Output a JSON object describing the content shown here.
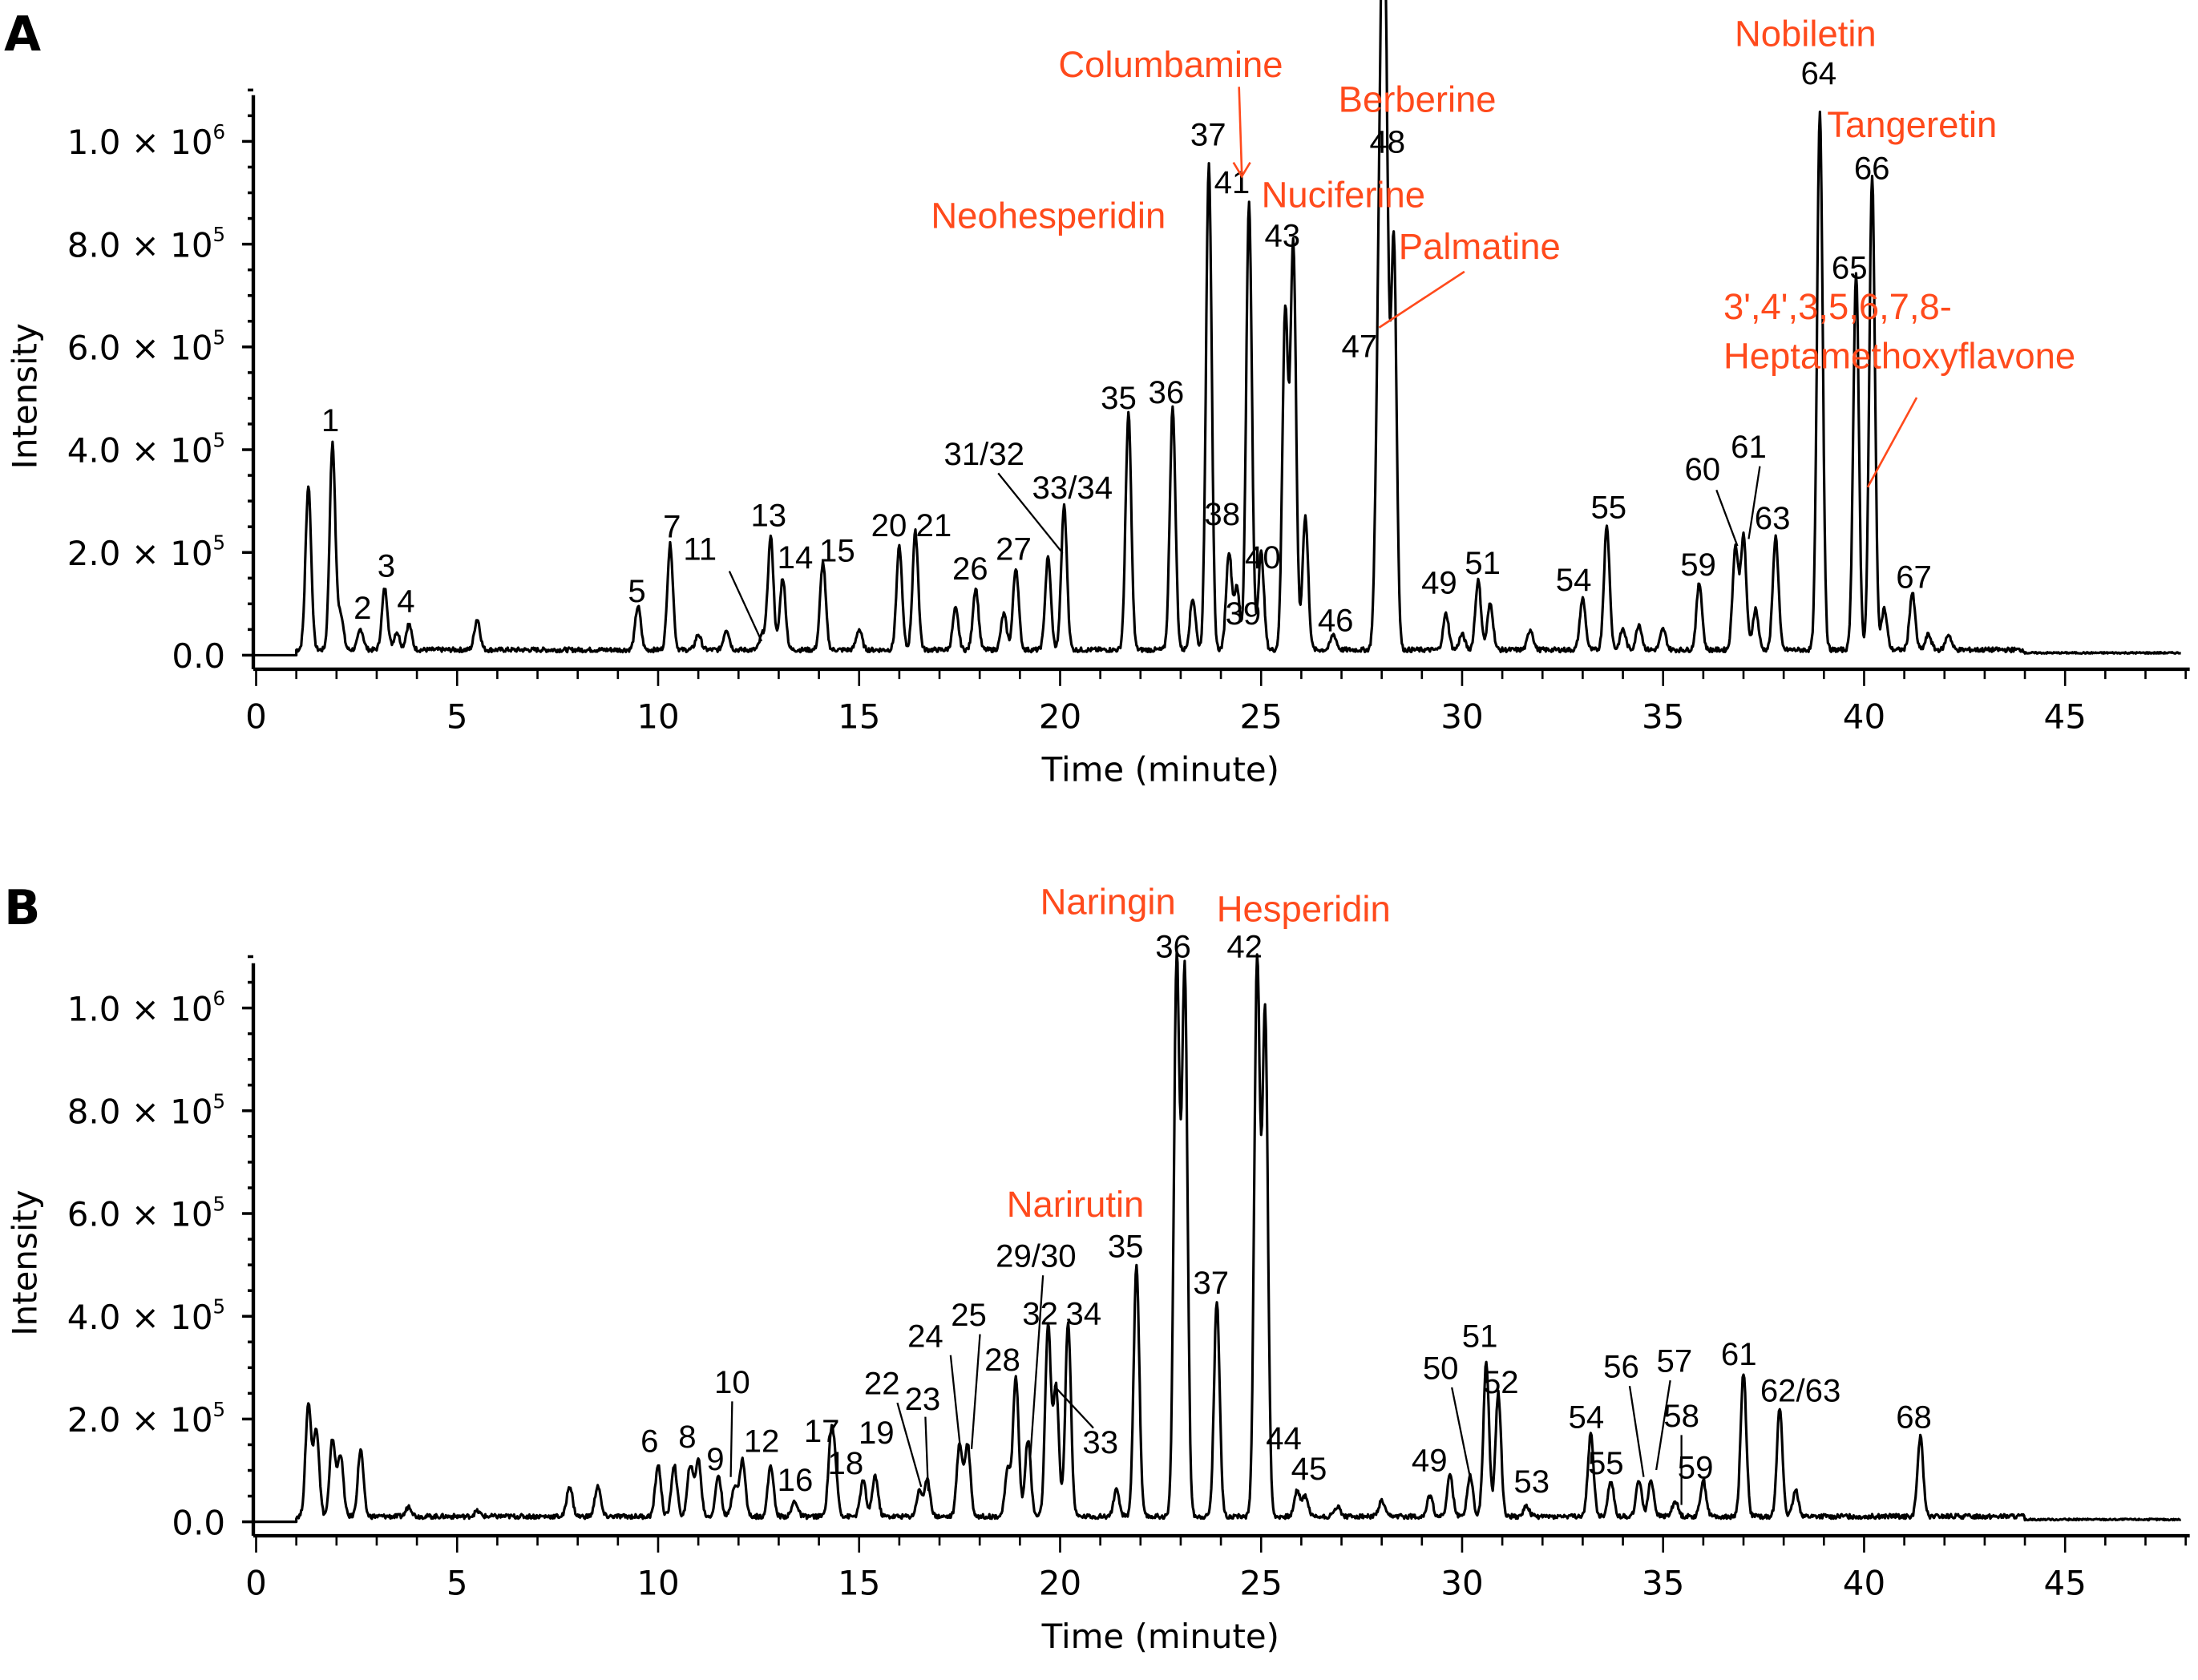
{
  "chart_data": [
    {
      "type": "line",
      "panel": "A",
      "xlabel": "Time (minute)",
      "ylabel": "Intensity",
      "xlim": [
        0,
        48
      ],
      "ylim": [
        0,
        1100000
      ],
      "xticks": [
        "0",
        "5",
        "10",
        "15",
        "20",
        "25",
        "30",
        "35",
        "40",
        "45"
      ],
      "yticks": [
        {
          "value": 0,
          "mant": "0.0",
          "exp": ""
        },
        {
          "value": 200000,
          "mant": "2.0 × 10",
          "exp": "5"
        },
        {
          "value": 400000,
          "mant": "4.0 × 10",
          "exp": "5"
        },
        {
          "value": 600000,
          "mant": "6.0 × 10",
          "exp": "5"
        },
        {
          "value": 800000,
          "mant": "8.0 × 10",
          "exp": "5"
        },
        {
          "value": 1000000,
          "mant": "1.0 × 10",
          "exp": "6"
        }
      ],
      "peaks": [
        {
          "t": 1.3,
          "i": 320000
        },
        {
          "t": 1.9,
          "i": 400000,
          "label": "1"
        },
        {
          "t": 2.1,
          "i": 70000
        },
        {
          "t": 2.6,
          "i": 40000,
          "label": "2"
        },
        {
          "t": 3.2,
          "i": 120000,
          "label": "3"
        },
        {
          "t": 3.5,
          "i": 35000
        },
        {
          "t": 3.8,
          "i": 50000,
          "label": "4"
        },
        {
          "t": 5.5,
          "i": 60000
        },
        {
          "t": 9.5,
          "i": 85000,
          "label": "5"
        },
        {
          "t": 10.3,
          "i": 205000,
          "label": "7"
        },
        {
          "t": 11.0,
          "i": 30000
        },
        {
          "t": 11.7,
          "i": 40000
        },
        {
          "t": 12.6,
          "i": 30000,
          "label": "11"
        },
        {
          "t": 12.8,
          "i": 220000,
          "label": "13"
        },
        {
          "t": 13.1,
          "i": 140000,
          "label": "14"
        },
        {
          "t": 14.1,
          "i": 170000,
          "label": "15"
        },
        {
          "t": 15.0,
          "i": 40000
        },
        {
          "t": 16.0,
          "i": 200000,
          "label": "20"
        },
        {
          "t": 16.4,
          "i": 230000,
          "label": "21"
        },
        {
          "t": 17.4,
          "i": 80000
        },
        {
          "t": 17.9,
          "i": 120000,
          "label": "26"
        },
        {
          "t": 18.6,
          "i": 70000
        },
        {
          "t": 18.9,
          "i": 160000,
          "label": "27"
        },
        {
          "t": 19.7,
          "i": 180000,
          "label": "31/32"
        },
        {
          "t": 20.1,
          "i": 280000,
          "label": "33/34"
        },
        {
          "t": 21.7,
          "i": 460000,
          "label": "35"
        },
        {
          "t": 22.8,
          "i": 470000,
          "label": "36"
        },
        {
          "t": 23.3,
          "i": 100000
        },
        {
          "t": 23.7,
          "i": 950000,
          "label": "37"
        },
        {
          "t": 24.2,
          "i": 190000,
          "label": "38"
        },
        {
          "t": 24.4,
          "i": 120000,
          "label": "39"
        },
        {
          "t": 24.7,
          "i": 870000,
          "label": "41"
        },
        {
          "t": 25.0,
          "i": 190000,
          "label": "40"
        },
        {
          "t": 25.6,
          "i": 660000
        },
        {
          "t": 25.8,
          "i": 790000,
          "label": "43"
        },
        {
          "t": 26.1,
          "i": 260000
        },
        {
          "t": 26.8,
          "i": 30000,
          "label": "46"
        },
        {
          "t": 27.9,
          "i": 350000,
          "label": "47"
        },
        {
          "t": 28.0,
          "i": 900000
        },
        {
          "t": 28.1,
          "i": 960000,
          "label": "48"
        },
        {
          "t": 28.3,
          "i": 800000
        },
        {
          "t": 29.6,
          "i": 70000,
          "label": "49"
        },
        {
          "t": 30.0,
          "i": 30000
        },
        {
          "t": 30.4,
          "i": 135000,
          "label": "51"
        },
        {
          "t": 30.7,
          "i": 90000
        },
        {
          "t": 31.7,
          "i": 40000
        },
        {
          "t": 33.0,
          "i": 100000,
          "label": "54"
        },
        {
          "t": 33.6,
          "i": 240000,
          "label": "55"
        },
        {
          "t": 34.0,
          "i": 40000
        },
        {
          "t": 34.4,
          "i": 50000
        },
        {
          "t": 35.0,
          "i": 40000
        },
        {
          "t": 35.9,
          "i": 130000,
          "label": "59"
        },
        {
          "t": 36.8,
          "i": 200000,
          "label": "60"
        },
        {
          "t": 37.0,
          "i": 220000,
          "label": "61"
        },
        {
          "t": 37.3,
          "i": 80000
        },
        {
          "t": 37.8,
          "i": 220000,
          "label": "63"
        },
        {
          "t": 38.9,
          "i": 1050000,
          "label": "64"
        },
        {
          "t": 39.8,
          "i": 730000,
          "label": "65"
        },
        {
          "t": 40.2,
          "i": 920000,
          "label": "66"
        },
        {
          "t": 40.5,
          "i": 80000
        },
        {
          "t": 41.2,
          "i": 110000,
          "label": "67"
        },
        {
          "t": 41.6,
          "i": 30000
        },
        {
          "t": 42.1,
          "i": 30000
        }
      ],
      "compounds": [
        "Columbamine",
        "Berberine",
        "Nuciferine",
        "Neohesperidin",
        "Palmatine",
        "Nobiletin",
        "Tangeretin",
        "3',4',3,5,6,7,8-",
        "Heptamethoxyflavone"
      ]
    },
    {
      "type": "line",
      "panel": "B",
      "xlabel": "Time (minute)",
      "ylabel": "Intensity",
      "xlim": [
        0,
        48
      ],
      "ylim": [
        0,
        1100000
      ],
      "xticks": [
        "0",
        "5",
        "10",
        "15",
        "20",
        "25",
        "30",
        "35",
        "40",
        "45"
      ],
      "yticks": [
        {
          "value": 0,
          "mant": "0.0",
          "exp": ""
        },
        {
          "value": 200000,
          "mant": "2.0 × 10",
          "exp": "5"
        },
        {
          "value": 400000,
          "mant": "4.0 × 10",
          "exp": "5"
        },
        {
          "value": 600000,
          "mant": "6.0 × 10",
          "exp": "5"
        },
        {
          "value": 800000,
          "mant": "8.0 × 10",
          "exp": "5"
        },
        {
          "value": 1000000,
          "mant": "1.0 × 10",
          "exp": "6"
        }
      ],
      "peaks": [
        {
          "t": 1.3,
          "i": 220000
        },
        {
          "t": 1.5,
          "i": 170000
        },
        {
          "t": 1.9,
          "i": 150000
        },
        {
          "t": 2.1,
          "i": 120000
        },
        {
          "t": 2.6,
          "i": 130000
        },
        {
          "t": 3.8,
          "i": 20000
        },
        {
          "t": 5.5,
          "i": 10000
        },
        {
          "t": 7.8,
          "i": 60000
        },
        {
          "t": 8.5,
          "i": 60000
        },
        {
          "t": 10.0,
          "i": 100000,
          "label": "6"
        },
        {
          "t": 10.4,
          "i": 100000
        },
        {
          "t": 10.8,
          "i": 100000,
          "label": "8"
        },
        {
          "t": 11.0,
          "i": 110000,
          "label": "9"
        },
        {
          "t": 11.5,
          "i": 80000
        },
        {
          "t": 11.9,
          "i": 60000,
          "label": "10"
        },
        {
          "t": 12.1,
          "i": 110000
        },
        {
          "t": 12.8,
          "i": 100000,
          "label": "12"
        },
        {
          "t": 13.4,
          "i": 30000,
          "label": "16"
        },
        {
          "t": 14.3,
          "i": 140000,
          "label": "17"
        },
        {
          "t": 14.4,
          "i": 80000,
          "label": "18"
        },
        {
          "t": 15.1,
          "i": 70000
        },
        {
          "t": 15.4,
          "i": 80000,
          "label": "19"
        },
        {
          "t": 16.5,
          "i": 50000,
          "label": "22"
        },
        {
          "t": 16.7,
          "i": 70000,
          "label": "23"
        },
        {
          "t": 17.5,
          "i": 140000,
          "label": "24"
        },
        {
          "t": 17.7,
          "i": 140000,
          "label": "25"
        },
        {
          "t": 18.7,
          "i": 90000
        },
        {
          "t": 18.9,
          "i": 270000,
          "label": "28"
        },
        {
          "t": 19.2,
          "i": 150000,
          "label": "29/30"
        },
        {
          "t": 19.7,
          "i": 370000,
          "label": "32"
        },
        {
          "t": 19.9,
          "i": 250000,
          "label": "33"
        },
        {
          "t": 20.2,
          "i": 380000,
          "label": "34"
        },
        {
          "t": 21.4,
          "i": 50000
        },
        {
          "t": 21.9,
          "i": 490000,
          "label": "35"
        },
        {
          "t": 22.9,
          "i": 1080000,
          "label": "36"
        },
        {
          "t": 23.1,
          "i": 1060000
        },
        {
          "t": 23.9,
          "i": 420000,
          "label": "37"
        },
        {
          "t": 24.9,
          "i": 1080000,
          "label": "42"
        },
        {
          "t": 25.1,
          "i": 980000
        },
        {
          "t": 25.9,
          "i": 50000,
          "label": "44"
        },
        {
          "t": 26.1,
          "i": 40000,
          "label": "45"
        },
        {
          "t": 26.9,
          "i": 20000
        },
        {
          "t": 28.0,
          "i": 30000
        },
        {
          "t": 29.2,
          "i": 40000
        },
        {
          "t": 29.7,
          "i": 80000,
          "label": "49"
        },
        {
          "t": 30.2,
          "i": 80000,
          "label": "50"
        },
        {
          "t": 30.6,
          "i": 300000,
          "label": "51"
        },
        {
          "t": 30.9,
          "i": 240000,
          "label": "52"
        },
        {
          "t": 31.6,
          "i": 20000,
          "label": "53"
        },
        {
          "t": 33.2,
          "i": 160000,
          "label": "54"
        },
        {
          "t": 33.7,
          "i": 70000,
          "label": "55"
        },
        {
          "t": 34.4,
          "i": 70000,
          "label": "56"
        },
        {
          "t": 34.7,
          "i": 70000,
          "label": "57"
        },
        {
          "t": 35.3,
          "i": 30000,
          "label": "58"
        },
        {
          "t": 36.0,
          "i": 70000,
          "label": "59"
        },
        {
          "t": 37.0,
          "i": 280000,
          "label": "61"
        },
        {
          "t": 37.9,
          "i": 210000,
          "label": "62/63"
        },
        {
          "t": 38.3,
          "i": 50000
        },
        {
          "t": 41.4,
          "i": 155000,
          "label": "68"
        }
      ],
      "compounds": [
        "Naringin",
        "Hesperidin",
        "Narirutin"
      ]
    }
  ]
}
